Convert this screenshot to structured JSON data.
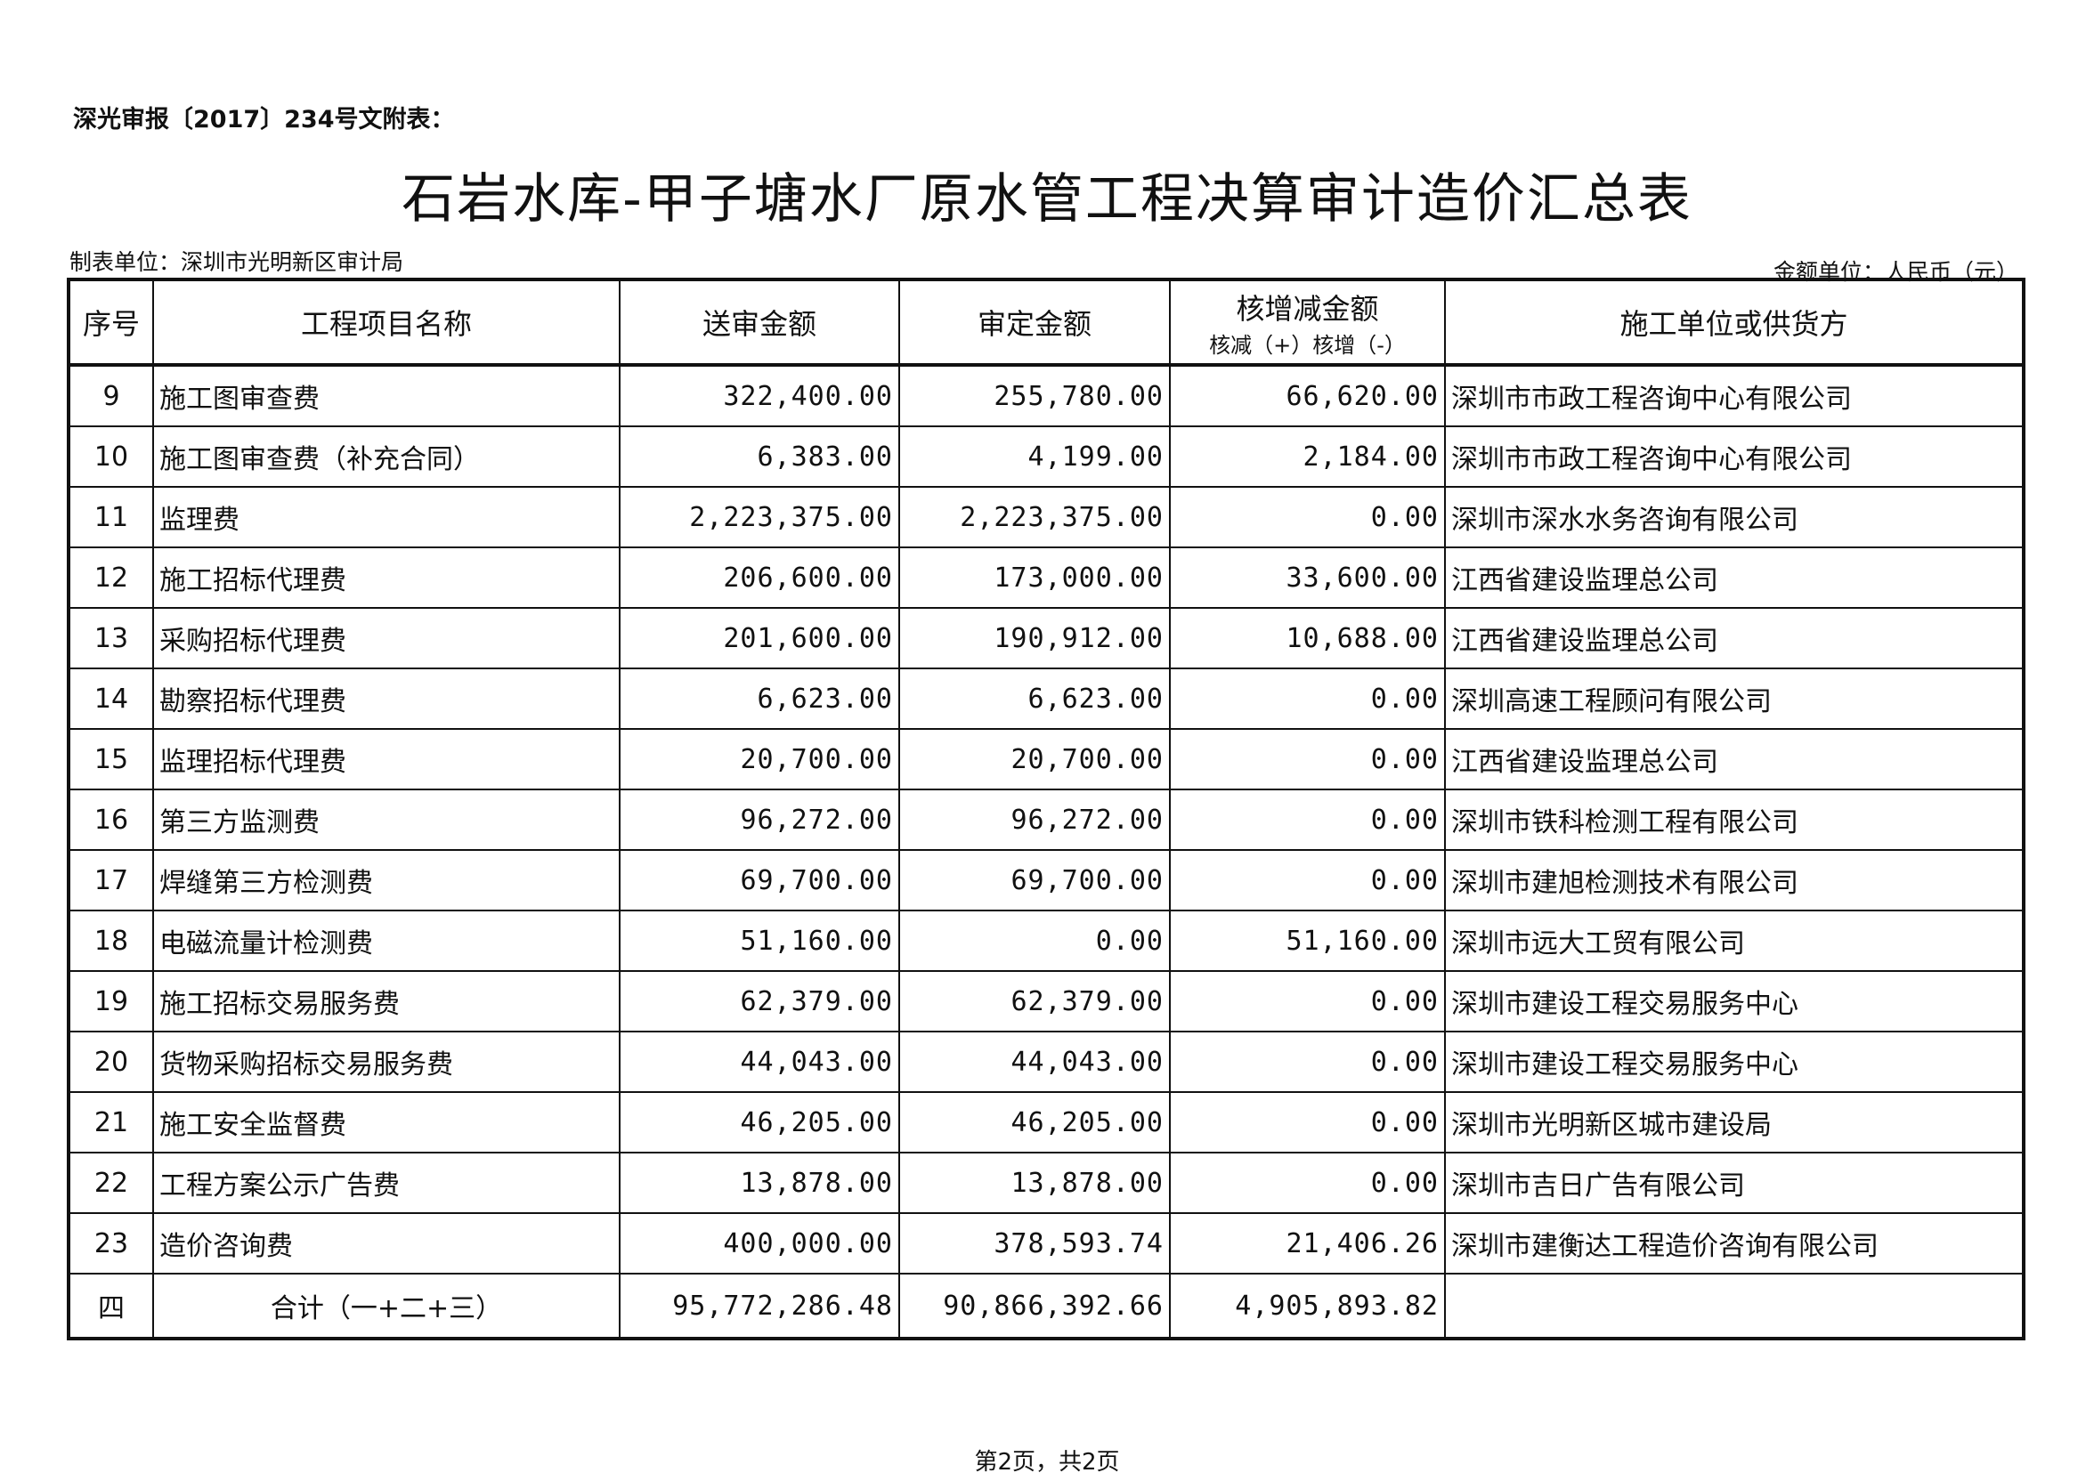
{
  "doc_ref": "深光审报〔2017〕234号文附表：",
  "title": "石岩水库-甲子塘水厂原水管工程决算审计造价汇总表",
  "prepared_by": "制表单位：深圳市光明新区审计局",
  "currency_unit": "金额单位：人民币（元）",
  "headers": {
    "no": "序号",
    "name": "工程项目名称",
    "submitted": "送审金额",
    "approved": "审定金额",
    "diff": "核增减金额",
    "diff_sub": "核减（+）核增（-）",
    "contractor": "施工单位或供货方"
  },
  "rows": [
    {
      "no": "9",
      "name": "施工图审查费",
      "submitted": "322,400.00",
      "approved": "255,780.00",
      "diff": "66,620.00",
      "contractor": "深圳市市政工程咨询中心有限公司"
    },
    {
      "no": "10",
      "name": "施工图审查费（补充合同）",
      "submitted": "6,383.00",
      "approved": "4,199.00",
      "diff": "2,184.00",
      "contractor": "深圳市市政工程咨询中心有限公司"
    },
    {
      "no": "11",
      "name": "监理费",
      "submitted": "2,223,375.00",
      "approved": "2,223,375.00",
      "diff": "0.00",
      "contractor": "深圳市深水水务咨询有限公司"
    },
    {
      "no": "12",
      "name": "施工招标代理费",
      "submitted": "206,600.00",
      "approved": "173,000.00",
      "diff": "33,600.00",
      "contractor": "江西省建设监理总公司"
    },
    {
      "no": "13",
      "name": "采购招标代理费",
      "submitted": "201,600.00",
      "approved": "190,912.00",
      "diff": "10,688.00",
      "contractor": "江西省建设监理总公司"
    },
    {
      "no": "14",
      "name": "勘察招标代理费",
      "submitted": "6,623.00",
      "approved": "6,623.00",
      "diff": "0.00",
      "contractor": "深圳高速工程顾问有限公司"
    },
    {
      "no": "15",
      "name": "监理招标代理费",
      "submitted": "20,700.00",
      "approved": "20,700.00",
      "diff": "0.00",
      "contractor": "江西省建设监理总公司"
    },
    {
      "no": "16",
      "name": "第三方监测费",
      "submitted": "96,272.00",
      "approved": "96,272.00",
      "diff": "0.00",
      "contractor": "深圳市铁科检测工程有限公司"
    },
    {
      "no": "17",
      "name": "焊缝第三方检测费",
      "submitted": "69,700.00",
      "approved": "69,700.00",
      "diff": "0.00",
      "contractor": "深圳市建旭检测技术有限公司"
    },
    {
      "no": "18",
      "name": "电磁流量计检测费",
      "submitted": "51,160.00",
      "approved": "0.00",
      "diff": "51,160.00",
      "contractor": "深圳市远大工贸有限公司"
    },
    {
      "no": "19",
      "name": "施工招标交易服务费",
      "submitted": "62,379.00",
      "approved": "62,379.00",
      "diff": "0.00",
      "contractor": "深圳市建设工程交易服务中心"
    },
    {
      "no": "20",
      "name": "货物采购招标交易服务费",
      "submitted": "44,043.00",
      "approved": "44,043.00",
      "diff": "0.00",
      "contractor": "深圳市建设工程交易服务中心"
    },
    {
      "no": "21",
      "name": "施工安全监督费",
      "submitted": "46,205.00",
      "approved": "46,205.00",
      "diff": "0.00",
      "contractor": "深圳市光明新区城市建设局"
    },
    {
      "no": "22",
      "name": "工程方案公示广告费",
      "submitted": "13,878.00",
      "approved": "13,878.00",
      "diff": "0.00",
      "contractor": "深圳市吉日广告有限公司"
    },
    {
      "no": "23",
      "name": "造价咨询费",
      "submitted": "400,000.00",
      "approved": "378,593.74",
      "diff": "21,406.26",
      "contractor": "深圳市建衡达工程造价咨询有限公司"
    }
  ],
  "total": {
    "no": "四",
    "name": "合计（一+二+三）",
    "submitted": "95,772,286.48",
    "approved": "90,866,392.66",
    "diff": "4,905,893.82",
    "contractor": ""
  },
  "footer": "第2页，共2页"
}
